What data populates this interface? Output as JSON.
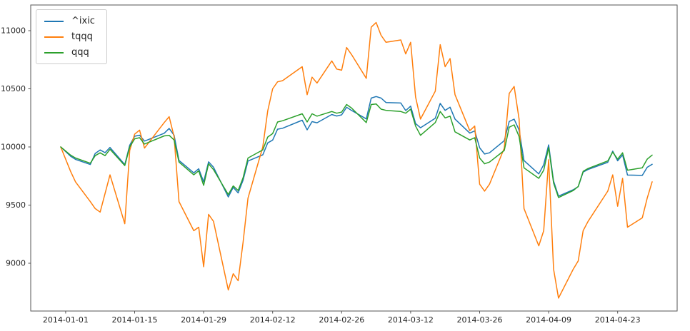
{
  "chart_data": {
    "type": "line",
    "title": "",
    "xlabel": "",
    "ylabel": "",
    "grid": false,
    "legend_position": "upper left",
    "y_ticks": [
      9000,
      9500,
      10000,
      10500,
      11000
    ],
    "x_tick_labels": [
      "2014-01-01",
      "2014-01-15",
      "2014-01-29",
      "2014-02-12",
      "2014-02-26",
      "2014-03-12",
      "2014-03-26",
      "2014-04-09",
      "2014-04-23"
    ],
    "x": [
      "2013-12-31",
      "2014-01-02",
      "2014-01-03",
      "2014-01-06",
      "2014-01-07",
      "2014-01-08",
      "2014-01-09",
      "2014-01-10",
      "2014-01-13",
      "2014-01-14",
      "2014-01-15",
      "2014-01-16",
      "2014-01-17",
      "2014-01-21",
      "2014-01-22",
      "2014-01-23",
      "2014-01-24",
      "2014-01-27",
      "2014-01-28",
      "2014-01-29",
      "2014-01-30",
      "2014-01-31",
      "2014-02-03",
      "2014-02-04",
      "2014-02-05",
      "2014-02-06",
      "2014-02-07",
      "2014-02-10",
      "2014-02-11",
      "2014-02-12",
      "2014-02-13",
      "2014-02-14",
      "2014-02-18",
      "2014-02-19",
      "2014-02-20",
      "2014-02-21",
      "2014-02-24",
      "2014-02-25",
      "2014-02-26",
      "2014-02-27",
      "2014-02-28",
      "2014-03-03",
      "2014-03-04",
      "2014-03-05",
      "2014-03-06",
      "2014-03-07",
      "2014-03-10",
      "2014-03-11",
      "2014-03-12",
      "2014-03-13",
      "2014-03-14",
      "2014-03-17",
      "2014-03-18",
      "2014-03-19",
      "2014-03-20",
      "2014-03-21",
      "2014-03-24",
      "2014-03-25",
      "2014-03-26",
      "2014-03-27",
      "2014-03-28",
      "2014-03-31",
      "2014-04-01",
      "2014-04-02",
      "2014-04-03",
      "2014-04-04",
      "2014-04-07",
      "2014-04-08",
      "2014-04-09",
      "2014-04-10",
      "2014-04-11",
      "2014-04-14",
      "2014-04-15",
      "2014-04-16",
      "2014-04-17",
      "2014-04-21",
      "2014-04-22",
      "2014-04-23",
      "2014-04-24",
      "2014-04-25",
      "2014-04-28",
      "2014-04-29",
      "2014-04-30"
    ],
    "series": [
      {
        "name": "^ixic",
        "color": "#1f77b4",
        "values": [
          10000,
          9920,
          9893,
          9849,
          9944,
          9974,
          9951,
          9996,
          9848,
          10015,
          10092,
          10101,
          10050,
          10118,
          10159,
          10101,
          9884,
          9777,
          9812,
          9700,
          9872,
          9826,
          9570,
          9653,
          9605,
          9714,
          9879,
          9932,
          10035,
          10059,
          10153,
          10161,
          10230,
          10147,
          10218,
          10208,
          10279,
          10266,
          10276,
          10341,
          10315,
          10241,
          10420,
          10434,
          10420,
          10382,
          10378,
          10313,
          10351,
          10201,
          10165,
          10247,
          10375,
          10314,
          10342,
          10240,
          10119,
          10138,
          9993,
          9939,
          9950,
          10054,
          10219,
          10239,
          10146,
          9883,
          9768,
          9848,
          10018,
          9707,
          9577,
          9632,
          9659,
          9784,
          9806,
          9868,
          9964,
          9881,
          9932,
          9758,
          9755,
          9825,
          9851
        ]
      },
      {
        "name": "tqqq",
        "color": "#ff7f0e",
        "values": [
          10000,
          9790,
          9700,
          9530,
          9470,
          9440,
          9600,
          9760,
          9340,
          9970,
          10110,
          10145,
          9990,
          10210,
          10260,
          10090,
          9530,
          9280,
          9310,
          8970,
          9420,
          9360,
          8770,
          8910,
          8850,
          9180,
          9560,
          10000,
          10310,
          10500,
          10560,
          10570,
          10690,
          10450,
          10600,
          10550,
          10740,
          10670,
          10660,
          10855,
          10795,
          10590,
          11030,
          11070,
          10960,
          10900,
          10920,
          10800,
          10900,
          10430,
          10240,
          10480,
          10880,
          10690,
          10760,
          10450,
          10140,
          10180,
          9680,
          9620,
          9680,
          9990,
          10460,
          10520,
          10240,
          9470,
          9150,
          9280,
          9890,
          8950,
          8700,
          8950,
          9020,
          9280,
          9360,
          9620,
          9760,
          9490,
          9730,
          9310,
          9390,
          9560,
          9700
        ]
      },
      {
        "name": "qqq",
        "color": "#2ca02c",
        "values": [
          10000,
          9930,
          9905,
          9860,
          9925,
          9950,
          9925,
          9980,
          9840,
          10000,
          10070,
          10080,
          10025,
          10095,
          10100,
          10060,
          9870,
          9760,
          9795,
          9670,
          9855,
          9805,
          9590,
          9665,
          9625,
          9735,
          9905,
          9975,
          10085,
          10115,
          10215,
          10225,
          10285,
          10215,
          10285,
          10265,
          10305,
          10290,
          10300,
          10365,
          10335,
          10210,
          10365,
          10370,
          10325,
          10315,
          10305,
          10290,
          10325,
          10180,
          10100,
          10210,
          10305,
          10250,
          10265,
          10130,
          10060,
          10080,
          9905,
          9855,
          9870,
          9970,
          10170,
          10190,
          10090,
          9820,
          9730,
          9800,
          9995,
          9690,
          9565,
          9625,
          9660,
          9790,
          9815,
          9880,
          9955,
          9895,
          9950,
          9800,
          9820,
          9895,
          9930
        ]
      }
    ]
  }
}
